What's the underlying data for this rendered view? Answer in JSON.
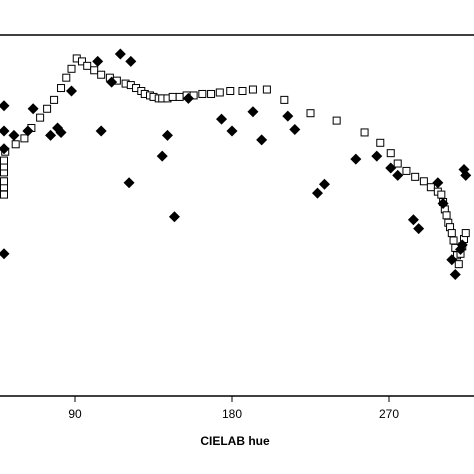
{
  "chart_data": {
    "type": "scatter",
    "xlabel": "CIELAB hue",
    "x_ticks": [
      90,
      180,
      270
    ],
    "xlim": [
      30,
      314
    ],
    "ylim": [
      -1,
      1
    ],
    "grid": false,
    "series": [
      {
        "marker": "open-square",
        "points": [
          [
            30,
            0.05
          ],
          [
            33,
            0.1
          ],
          [
            35,
            0.14
          ],
          [
            38,
            0.2
          ],
          [
            41,
            0.24
          ],
          [
            45,
            0.28
          ],
          [
            50,
            0.34
          ],
          [
            56,
            0.39
          ],
          [
            61,
            0.43
          ],
          [
            65,
            0.5
          ],
          [
            70,
            0.57
          ],
          [
            74,
            0.63
          ],
          [
            78,
            0.69
          ],
          [
            82,
            0.77
          ],
          [
            85,
            0.84
          ],
          [
            88,
            0.9
          ],
          [
            91,
            0.97
          ],
          [
            94,
            0.95
          ],
          [
            97,
            0.92
          ],
          [
            101,
            0.89
          ],
          [
            105,
            0.86
          ],
          [
            110,
            0.84
          ],
          [
            114,
            0.82
          ],
          [
            119,
            0.8
          ],
          [
            122,
            0.79
          ],
          [
            125,
            0.77
          ],
          [
            128,
            0.75
          ],
          [
            130,
            0.73
          ],
          [
            133,
            0.72
          ],
          [
            135,
            0.71
          ],
          [
            138,
            0.7
          ],
          [
            140,
            0.7
          ],
          [
            143,
            0.7
          ],
          [
            146,
            0.71
          ],
          [
            150,
            0.71
          ],
          [
            154,
            0.72
          ],
          [
            158,
            0.72
          ],
          [
            163,
            0.73
          ],
          [
            168,
            0.73
          ],
          [
            173,
            0.74
          ],
          [
            179,
            0.75
          ],
          [
            186,
            0.75
          ],
          [
            192,
            0.76
          ],
          [
            200,
            0.76
          ],
          [
            210,
            0.69
          ],
          [
            225,
            0.6
          ],
          [
            240,
            0.55
          ],
          [
            256,
            0.47
          ],
          [
            265,
            0.4
          ],
          [
            271,
            0.33
          ],
          [
            275,
            0.26
          ],
          [
            280,
            0.21
          ],
          [
            285,
            0.17
          ],
          [
            290,
            0.14
          ],
          [
            294,
            0.1
          ],
          [
            298,
            0.07
          ],
          [
            300,
            0.05
          ],
          [
            301,
            0.0
          ],
          [
            302,
            -0.05
          ],
          [
            303,
            -0.09
          ],
          [
            304,
            -0.14
          ],
          [
            305,
            -0.17
          ],
          [
            306,
            -0.21
          ],
          [
            307,
            -0.26
          ],
          [
            308,
            -0.31
          ],
          [
            309,
            -0.36
          ],
          [
            310,
            -0.42
          ],
          [
            311,
            -0.35
          ],
          [
            312,
            -0.3
          ],
          [
            313,
            -0.25
          ],
          [
            314,
            -0.21
          ]
        ]
      },
      {
        "marker": "filled-diamond",
        "points": [
          [
            36,
            0.36
          ],
          [
            38,
            -0.35
          ],
          [
            42,
            0.48
          ],
          [
            45,
            0.65
          ],
          [
            55,
            0.45
          ],
          [
            63,
            0.48
          ],
          [
            66,
            0.63
          ],
          [
            76,
            0.45
          ],
          [
            80,
            0.5
          ],
          [
            82,
            0.47
          ],
          [
            88,
            0.75
          ],
          [
            105,
            0.48
          ],
          [
            103,
            0.95
          ],
          [
            111,
            0.81
          ],
          [
            116,
            1.0
          ],
          [
            121,
            0.13
          ],
          [
            122,
            0.95
          ],
          [
            140,
            0.31
          ],
          [
            143,
            0.45
          ],
          [
            147,
            -0.1
          ],
          [
            155,
            0.7
          ],
          [
            174,
            0.56
          ],
          [
            180,
            0.48
          ],
          [
            192,
            0.61
          ],
          [
            197,
            0.42
          ],
          [
            212,
            0.58
          ],
          [
            216,
            0.49
          ],
          [
            229,
            0.06
          ],
          [
            233,
            0.12
          ],
          [
            251,
            0.29
          ],
          [
            263,
            0.31
          ],
          [
            271,
            0.23
          ],
          [
            275,
            0.18
          ],
          [
            284,
            -0.12
          ],
          [
            287,
            -0.18
          ],
          [
            298,
            0.13
          ],
          [
            301,
            -0.01
          ],
          [
            306,
            -0.39
          ],
          [
            308,
            -0.49
          ],
          [
            311,
            -0.32
          ],
          [
            312,
            -0.29
          ],
          [
            313,
            0.22
          ],
          [
            314,
            0.18
          ]
        ]
      }
    ]
  }
}
